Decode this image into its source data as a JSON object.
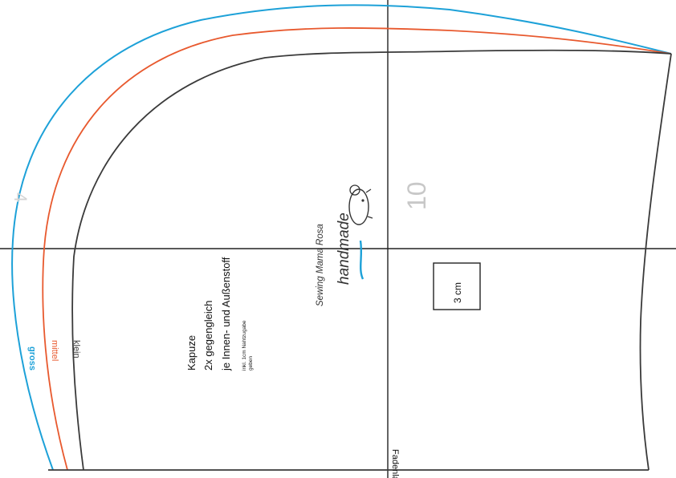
{
  "sizes": [
    {
      "label": "gross",
      "color": "#1da1d8"
    },
    {
      "label": "mittel",
      "color": "#e8592e"
    },
    {
      "label": "klein",
      "color": "#3a3a3a"
    }
  ],
  "instructions": {
    "title": "Kapuze",
    "line1": "2x gegengleich",
    "line2": "je Innen- und Außenstoff",
    "note1": "inkl. 1cm Nahtzugabe",
    "note2": "geben"
  },
  "scale_box_label": "3 cm",
  "page_number": "10",
  "page_mark": "4",
  "grainline_label": "Fadenlauf",
  "brand": {
    "name": "Sewing Mama Rosa",
    "tagline": "handmade",
    "logo_icon": "sheep-icon"
  },
  "colors": {
    "outline": "#3a3a3a",
    "guide": "#222222",
    "page_number": "#c8c8c8",
    "brand": "#333333",
    "accent": "#1da1d8"
  }
}
